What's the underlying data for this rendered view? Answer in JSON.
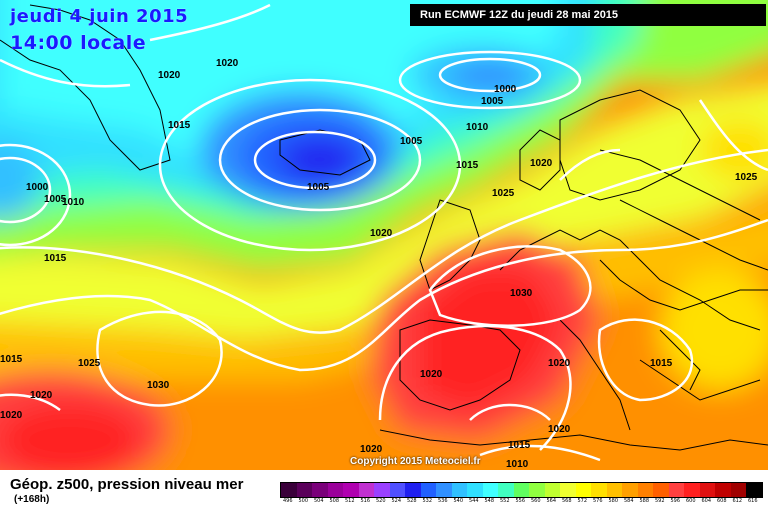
{
  "header": {
    "date": "jeudi 4 juin 2015",
    "time": "14:00 locale",
    "run": "Run ECMWF 12Z du jeudi 28 mai 2015"
  },
  "footer": {
    "title": "Géop. z500, pression niveau mer",
    "subtitle": "(+168h)",
    "copyright": "Copyright 2015 Meteociel.fr"
  },
  "isobar_labels": [
    "1020",
    "1020",
    "1005",
    "1000",
    "1015",
    "1005",
    "1010",
    "1005",
    "1015",
    "1020",
    "1025",
    "1025",
    "1000",
    "1005",
    "1010",
    "1015",
    "1020",
    "1030",
    "1015",
    "1025",
    "1030",
    "1020",
    "1020",
    "1020",
    "1015",
    "1020",
    "1020",
    "1015",
    "1010"
  ],
  "legend": {
    "ticks": [
      "496",
      "500",
      "504",
      "508",
      "512",
      "516",
      "520",
      "524",
      "528",
      "532",
      "536",
      "540",
      "544",
      "548",
      "552",
      "556",
      "560",
      "564",
      "568",
      "572",
      "576",
      "580",
      "584",
      "588",
      "592",
      "596",
      "600",
      "604",
      "608",
      "612",
      "616"
    ],
    "colors": [
      "#3a003a",
      "#5a005a",
      "#7a007a",
      "#9a009a",
      "#b000b0",
      "#c030d0",
      "#9a40ff",
      "#5050ff",
      "#2020f0",
      "#2060ff",
      "#3090ff",
      "#30c0ff",
      "#30e0ff",
      "#40ffff",
      "#40ffc0",
      "#60ff60",
      "#90ff40",
      "#c0ff30",
      "#f0ff30",
      "#ffff00",
      "#ffe000",
      "#ffc000",
      "#ffa000",
      "#ff8000",
      "#ff6000",
      "#ff4040",
      "#ff2020",
      "#e01010",
      "#c00000",
      "#a00000",
      "#000000"
    ]
  },
  "map": {
    "sea_color": "#30a0ff",
    "land_color": "#000000"
  }
}
